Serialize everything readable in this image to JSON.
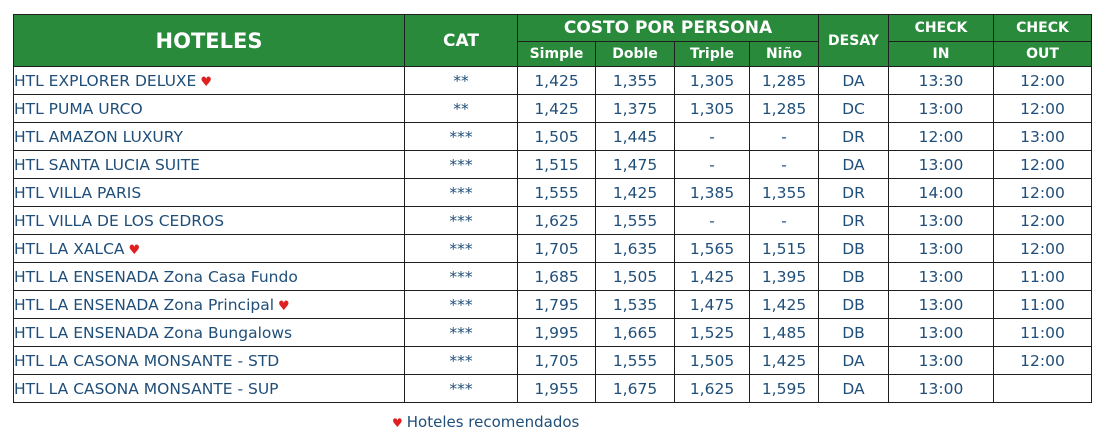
{
  "header": {
    "hoteles": "HOTELES",
    "cat": "CAT",
    "costo": "COSTO POR PERSONA",
    "desay": "DESAY",
    "check": "CHECK",
    "check_in": "IN",
    "check_out": "OUT",
    "simple": "Simple",
    "doble": "Doble",
    "triple": "Triple",
    "nino": "Niño"
  },
  "rows": [
    {
      "name": "HTL EXPLORER DELUXE",
      "recommended": true,
      "cat": "**",
      "simple": "1,425",
      "doble": "1,355",
      "triple": "1,305",
      "nino": "1,285",
      "desay": "DA",
      "in": "13:30",
      "out": "12:00"
    },
    {
      "name": "HTL PUMA URCO",
      "recommended": false,
      "cat": "**",
      "simple": "1,425",
      "doble": "1,375",
      "triple": "1,305",
      "nino": "1,285",
      "desay": "DC",
      "in": "13:00",
      "out": "12:00"
    },
    {
      "name": "HTL AMAZON LUXURY",
      "recommended": false,
      "cat": "***",
      "simple": "1,505",
      "doble": "1,445",
      "triple": "-",
      "nino": "-",
      "desay": "DR",
      "in": "12:00",
      "out": "13:00"
    },
    {
      "name": "HTL SANTA LUCIA SUITE",
      "recommended": false,
      "cat": "***",
      "simple": "1,515",
      "doble": "1,475",
      "triple": "-",
      "nino": "-",
      "desay": "DA",
      "in": "13:00",
      "out": "12:00"
    },
    {
      "name": "HTL VILLA PARIS",
      "recommended": false,
      "cat": "***",
      "simple": "1,555",
      "doble": "1,425",
      "triple": "1,385",
      "nino": "1,355",
      "desay": "DR",
      "in": "14:00",
      "out": "12:00"
    },
    {
      "name": "HTL VILLA DE LOS CEDROS",
      "recommended": false,
      "cat": "***",
      "simple": "1,625",
      "doble": "1,555",
      "triple": "-",
      "nino": "-",
      "desay": "DR",
      "in": "13:00",
      "out": "12:00"
    },
    {
      "name": "HTL LA XALCA",
      "recommended": true,
      "cat": "***",
      "simple": "1,705",
      "doble": "1,635",
      "triple": "1,565",
      "nino": "1,515",
      "desay": "DB",
      "in": "13:00",
      "out": "12:00"
    },
    {
      "name": "HTL LA ENSENADA Zona Casa Fundo",
      "recommended": false,
      "cat": "***",
      "simple": "1,685",
      "doble": "1,505",
      "triple": "1,425",
      "nino": "1,395",
      "desay": "DB",
      "in": "13:00",
      "out": "11:00"
    },
    {
      "name": "HTL LA ENSENADA Zona Principal",
      "recommended": true,
      "cat": "***",
      "simple": "1,795",
      "doble": "1,535",
      "triple": "1,475",
      "nino": "1,425",
      "desay": "DB",
      "in": "13:00",
      "out": "11:00"
    },
    {
      "name": "HTL LA ENSENADA Zona Bungalows",
      "recommended": false,
      "cat": "***",
      "simple": "1,995",
      "doble": "1,665",
      "triple": "1,525",
      "nino": "1,485",
      "desay": "DB",
      "in": "13:00",
      "out": "11:00"
    },
    {
      "name": "HTL LA CASONA MONSANTE - STD",
      "recommended": false,
      "cat": "***",
      "simple": "1,705",
      "doble": "1,555",
      "triple": "1,505",
      "nino": "1,425",
      "desay": "DA",
      "in": "13:00",
      "out": "12:00"
    },
    {
      "name": "HTL LA CASONA MONSANTE - SUP",
      "recommended": false,
      "cat": "***",
      "simple": "1,955",
      "doble": "1,675",
      "triple": "1,625",
      "nino": "1,595",
      "desay": "DA",
      "in": "13:00",
      "out": ""
    }
  ],
  "footer": {
    "text": "Hoteles recomendados"
  },
  "icons": {
    "recommended": "heart-icon",
    "heart_glyph": "♥"
  },
  "colors": {
    "header_bg": "#2a8a3c",
    "header_text": "#ffffff",
    "cell_text": "#1f4e79",
    "heart": "#e02020"
  }
}
